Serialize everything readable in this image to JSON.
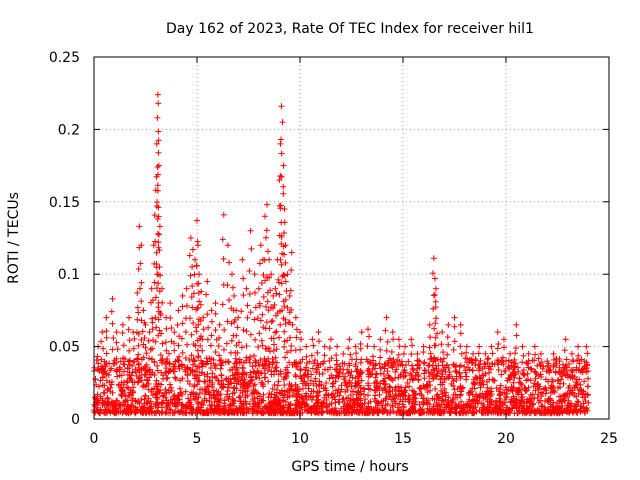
{
  "chart_data": {
    "type": "scatter",
    "title": "Day 162 of 2023, Rate Of TEC Index for receiver hil1",
    "xlabel": "GPS time / hours",
    "ylabel": "ROTI / TECUs",
    "xlim": [
      0,
      25
    ],
    "ylim": [
      0,
      0.25
    ],
    "xticks": [
      "0",
      "5",
      "10",
      "15",
      "20",
      "25"
    ],
    "yticks": [
      "0",
      "0.05",
      "0.1",
      "0.15",
      "0.2",
      "0.25"
    ],
    "grid": true,
    "colors": {
      "series": "#ff0000",
      "grid": "#a0a0a0",
      "axis": "#000000"
    },
    "marker": "plus",
    "series": [
      {
        "name": "ROTI",
        "x": [
          0.2,
          0.4,
          0.6,
          0.9,
          1.1,
          1.4,
          1.7,
          1.9,
          2.1,
          2.2,
          2.3,
          2.4,
          2.5,
          2.7,
          2.8,
          2.9,
          3.0,
          3.05,
          3.08,
          3.1,
          3.12,
          3.15,
          3.2,
          3.3,
          3.5,
          3.7,
          3.9,
          4.1,
          4.3,
          4.5,
          4.7,
          4.8,
          4.9,
          5.0,
          5.05,
          5.1,
          5.2,
          5.3,
          5.5,
          5.7,
          5.9,
          6.1,
          6.3,
          6.5,
          6.7,
          6.8,
          6.9,
          7.0,
          7.2,
          7.4,
          7.6,
          7.8,
          8.0,
          8.1,
          8.2,
          8.3,
          8.4,
          8.5,
          8.6,
          8.7,
          8.8,
          8.9,
          9.0,
          9.05,
          9.1,
          9.15,
          9.2,
          9.25,
          9.3,
          9.4,
          9.5,
          9.6,
          9.8,
          10.0,
          10.3,
          10.6,
          10.9,
          11.2,
          11.5,
          11.8,
          12.1,
          12.4,
          12.7,
          13.0,
          13.3,
          13.6,
          13.9,
          14.2,
          14.5,
          14.8,
          15.1,
          15.4,
          15.7,
          16.0,
          16.3,
          16.5,
          16.55,
          16.6,
          16.9,
          17.2,
          17.5,
          17.8,
          18.1,
          18.4,
          18.7,
          19.0,
          19.3,
          19.6,
          19.9,
          20.2,
          20.5,
          20.8,
          21.1,
          21.4,
          21.7,
          22.0,
          22.3,
          22.6,
          22.9,
          23.2,
          23.5,
          23.8,
          23.9
        ],
        "y": [
          0.05,
          0.06,
          0.07,
          0.083,
          0.06,
          0.065,
          0.07,
          0.06,
          0.087,
          0.133,
          0.12,
          0.075,
          0.065,
          0.06,
          0.09,
          0.12,
          0.158,
          0.19,
          0.208,
          0.224,
          0.218,
          0.175,
          0.133,
          0.09,
          0.07,
          0.08,
          0.06,
          0.075,
          0.085,
          0.09,
          0.125,
          0.117,
          0.11,
          0.137,
          0.12,
          0.1,
          0.088,
          0.07,
          0.095,
          0.075,
          0.08,
          0.065,
          0.141,
          0.12,
          0.1,
          0.085,
          0.075,
          0.07,
          0.11,
          0.09,
          0.13,
          0.1,
          0.09,
          0.12,
          0.11,
          0.14,
          0.148,
          0.11,
          0.1,
          0.085,
          0.09,
          0.11,
          0.165,
          0.19,
          0.216,
          0.205,
          0.175,
          0.145,
          0.12,
          0.1,
          0.085,
          0.115,
          0.07,
          0.06,
          0.05,
          0.055,
          0.06,
          0.05,
          0.055,
          0.05,
          0.045,
          0.055,
          0.05,
          0.06,
          0.062,
          0.05,
          0.055,
          0.07,
          0.06,
          0.055,
          0.05,
          0.055,
          0.045,
          0.05,
          0.065,
          0.111,
          0.097,
          0.09,
          0.06,
          0.065,
          0.07,
          0.065,
          0.05,
          0.045,
          0.05,
          0.045,
          0.05,
          0.06,
          0.055,
          0.045,
          0.065,
          0.05,
          0.045,
          0.05,
          0.045,
          0.04,
          0.045,
          0.04,
          0.055,
          0.045,
          0.05,
          0.04,
          0.05
        ]
      }
    ]
  }
}
